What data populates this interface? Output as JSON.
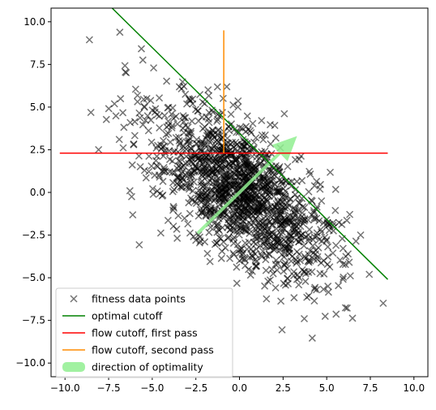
{
  "chart_data": {
    "type": "scatter",
    "xlim": [
      -10.8,
      10.8
    ],
    "ylim": [
      -10.8,
      10.8
    ],
    "x_ticks": [
      -10.0,
      -7.5,
      -5.0,
      -2.5,
      0.0,
      2.5,
      5.0,
      7.5,
      10.0
    ],
    "y_ticks": [
      -10.0,
      -7.5,
      -5.0,
      -2.5,
      0.0,
      2.5,
      5.0,
      7.5,
      10.0
    ],
    "x_tick_labels": [
      "−10.0",
      "−7.5",
      "−5.0",
      "−2.5",
      "0.0",
      "2.5",
      "5.0",
      "7.5",
      "10.0"
    ],
    "y_tick_labels": [
      "−10.0",
      "−7.5",
      "−5.0",
      "−2.5",
      "0.0",
      "2.5",
      "5.0",
      "7.5",
      "10.0"
    ],
    "grid": false,
    "legend_position": "lower-left",
    "scatter": {
      "name": "fitness data points",
      "marker": "x",
      "color": "#000000",
      "count": 1500,
      "center": [
        0.0,
        0.0
      ],
      "std_major": 3.3,
      "std_minor": 1.55,
      "major_axis_angle_deg": -45
    },
    "lines": [
      {
        "name": "optimal cutoff",
        "color": "#008000",
        "x": [
          -7.3,
          8.5
        ],
        "y": [
          10.8,
          -5.1
        ]
      },
      {
        "name": "flow cutoff, first pass",
        "color": "#ff0000",
        "x": [
          -10.3,
          8.5
        ],
        "y": [
          2.3,
          2.3
        ]
      },
      {
        "name": "flow cutoff, second pass",
        "color": "#ff8c00",
        "x": [
          -0.9,
          -0.9
        ],
        "y": [
          2.3,
          9.5
        ]
      }
    ],
    "arrow": {
      "name": "direction of optimality",
      "color": "#90ee90",
      "from": [
        -2.4,
        -2.4
      ],
      "to": [
        3.3,
        3.3
      ]
    }
  }
}
